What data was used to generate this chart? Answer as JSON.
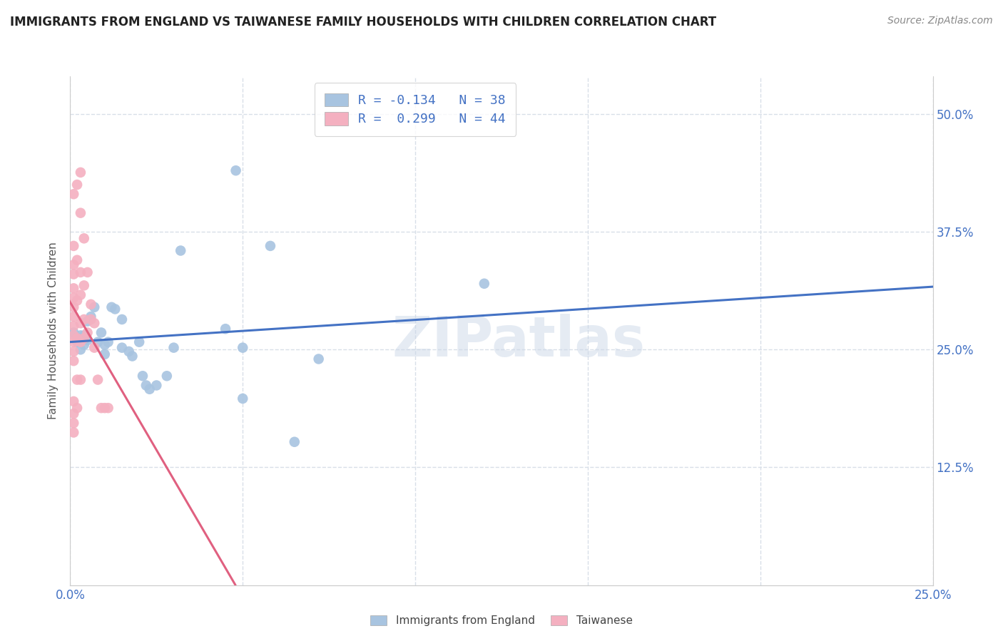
{
  "title": "IMMIGRANTS FROM ENGLAND VS TAIWANESE FAMILY HOUSEHOLDS WITH CHILDREN CORRELATION CHART",
  "source": "Source: ZipAtlas.com",
  "ylabel": "Family Households with Children",
  "ytick_labels": [
    "12.5%",
    "25.0%",
    "37.5%",
    "50.0%"
  ],
  "ytick_values": [
    0.125,
    0.25,
    0.375,
    0.5
  ],
  "xlim": [
    0.0,
    0.25
  ],
  "ylim": [
    0.0,
    0.54
  ],
  "legend_eng_text": "R = -0.134   N = 38",
  "legend_tai_text": "R =  0.299   N = 44",
  "watermark": "ZIPatlas",
  "england_color": "#a8c4e0",
  "england_line_color": "#4472c4",
  "taiwanese_color": "#f4b0c0",
  "taiwanese_line_color": "#e06080",
  "england_scatter": [
    [
      0.001,
      0.268
    ],
    [
      0.002,
      0.258
    ],
    [
      0.002,
      0.262
    ],
    [
      0.003,
      0.25
    ],
    [
      0.003,
      0.265
    ],
    [
      0.004,
      0.255
    ],
    [
      0.004,
      0.265
    ],
    [
      0.005,
      0.26
    ],
    [
      0.005,
      0.28
    ],
    [
      0.006,
      0.285
    ],
    [
      0.007,
      0.295
    ],
    [
      0.008,
      0.258
    ],
    [
      0.009,
      0.268
    ],
    [
      0.01,
      0.255
    ],
    [
      0.01,
      0.245
    ],
    [
      0.011,
      0.258
    ],
    [
      0.012,
      0.295
    ],
    [
      0.013,
      0.293
    ],
    [
      0.015,
      0.282
    ],
    [
      0.015,
      0.252
    ],
    [
      0.017,
      0.248
    ],
    [
      0.018,
      0.243
    ],
    [
      0.02,
      0.258
    ],
    [
      0.021,
      0.222
    ],
    [
      0.022,
      0.212
    ],
    [
      0.023,
      0.208
    ],
    [
      0.025,
      0.212
    ],
    [
      0.028,
      0.222
    ],
    [
      0.03,
      0.252
    ],
    [
      0.032,
      0.355
    ],
    [
      0.045,
      0.272
    ],
    [
      0.048,
      0.44
    ],
    [
      0.05,
      0.252
    ],
    [
      0.05,
      0.198
    ],
    [
      0.058,
      0.36
    ],
    [
      0.065,
      0.152
    ],
    [
      0.072,
      0.24
    ],
    [
      0.12,
      0.32
    ]
  ],
  "taiwanese_scatter": [
    [
      0.001,
      0.415
    ],
    [
      0.001,
      0.36
    ],
    [
      0.001,
      0.34
    ],
    [
      0.001,
      0.33
    ],
    [
      0.001,
      0.315
    ],
    [
      0.001,
      0.305
    ],
    [
      0.001,
      0.295
    ],
    [
      0.001,
      0.285
    ],
    [
      0.001,
      0.275
    ],
    [
      0.001,
      0.265
    ],
    [
      0.001,
      0.258
    ],
    [
      0.001,
      0.248
    ],
    [
      0.001,
      0.238
    ],
    [
      0.001,
      0.195
    ],
    [
      0.001,
      0.182
    ],
    [
      0.001,
      0.172
    ],
    [
      0.001,
      0.162
    ],
    [
      0.002,
      0.425
    ],
    [
      0.002,
      0.345
    ],
    [
      0.002,
      0.302
    ],
    [
      0.002,
      0.262
    ],
    [
      0.002,
      0.218
    ],
    [
      0.002,
      0.188
    ],
    [
      0.003,
      0.395
    ],
    [
      0.003,
      0.332
    ],
    [
      0.003,
      0.308
    ],
    [
      0.003,
      0.278
    ],
    [
      0.003,
      0.258
    ],
    [
      0.003,
      0.218
    ],
    [
      0.004,
      0.368
    ],
    [
      0.004,
      0.318
    ],
    [
      0.004,
      0.282
    ],
    [
      0.004,
      0.262
    ],
    [
      0.005,
      0.332
    ],
    [
      0.005,
      0.268
    ],
    [
      0.006,
      0.298
    ],
    [
      0.006,
      0.282
    ],
    [
      0.007,
      0.278
    ],
    [
      0.007,
      0.252
    ],
    [
      0.008,
      0.218
    ],
    [
      0.009,
      0.188
    ],
    [
      0.01,
      0.188
    ],
    [
      0.011,
      0.188
    ],
    [
      0.003,
      0.438
    ]
  ],
  "title_fontsize": 12,
  "axis_label_color": "#4472c4",
  "grid_color": "#d8dfe8",
  "background_color": "#ffffff"
}
